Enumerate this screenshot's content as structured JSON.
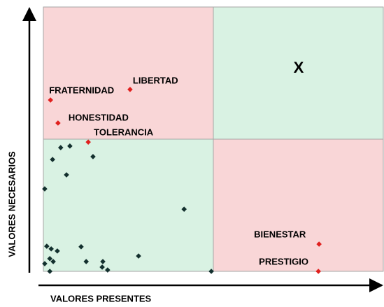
{
  "chart_data": {
    "type": "scatter",
    "x_label": "VALORES PRESENTES",
    "y_label": "VALORES NECESARIOS",
    "annotation": "X",
    "xlim": [
      0,
      100
    ],
    "ylim": [
      0,
      100
    ],
    "quadrants": {
      "x": 50,
      "y": 50,
      "colors": {
        "top_left": "#f9d6d7",
        "top_right": "#d9f2e3",
        "bottom_left": "#d9f2e3",
        "bottom_right": "#f9d6d7"
      },
      "border": "#a6a6a6"
    },
    "series": [
      {
        "color": "#e0201e",
        "labels": [
          "FRATERNIDAD",
          "LIBERTAD",
          "HONESTIDAD",
          "TOLERANCIA",
          "BIENESTAR",
          "PRESTIGIO"
        ],
        "x": [
          2.1,
          25.5,
          4.3,
          13.2,
          81.1,
          80.9
        ],
        "values": [
          64.8,
          68.8,
          56.1,
          48.9,
          10.3,
          0
        ]
      },
      {
        "color": "#13302e",
        "x": [
          5.1,
          7.8,
          2.7,
          14.6,
          6.8,
          0.4,
          41.4,
          1.0,
          2.3,
          4.1,
          11.1,
          1.9,
          2.9,
          0.4,
          12.6,
          17.5,
          28.0,
          17.3,
          18.9,
          1.9,
          49.4
        ],
        "values": [
          46.8,
          47.4,
          42.3,
          43.4,
          36.5,
          31.2,
          23.5,
          9.5,
          8.5,
          7.7,
          9.3,
          4.8,
          3.7,
          2.9,
          3.7,
          3.7,
          5.8,
          1.6,
          0.5,
          0,
          0
        ]
      }
    ]
  }
}
